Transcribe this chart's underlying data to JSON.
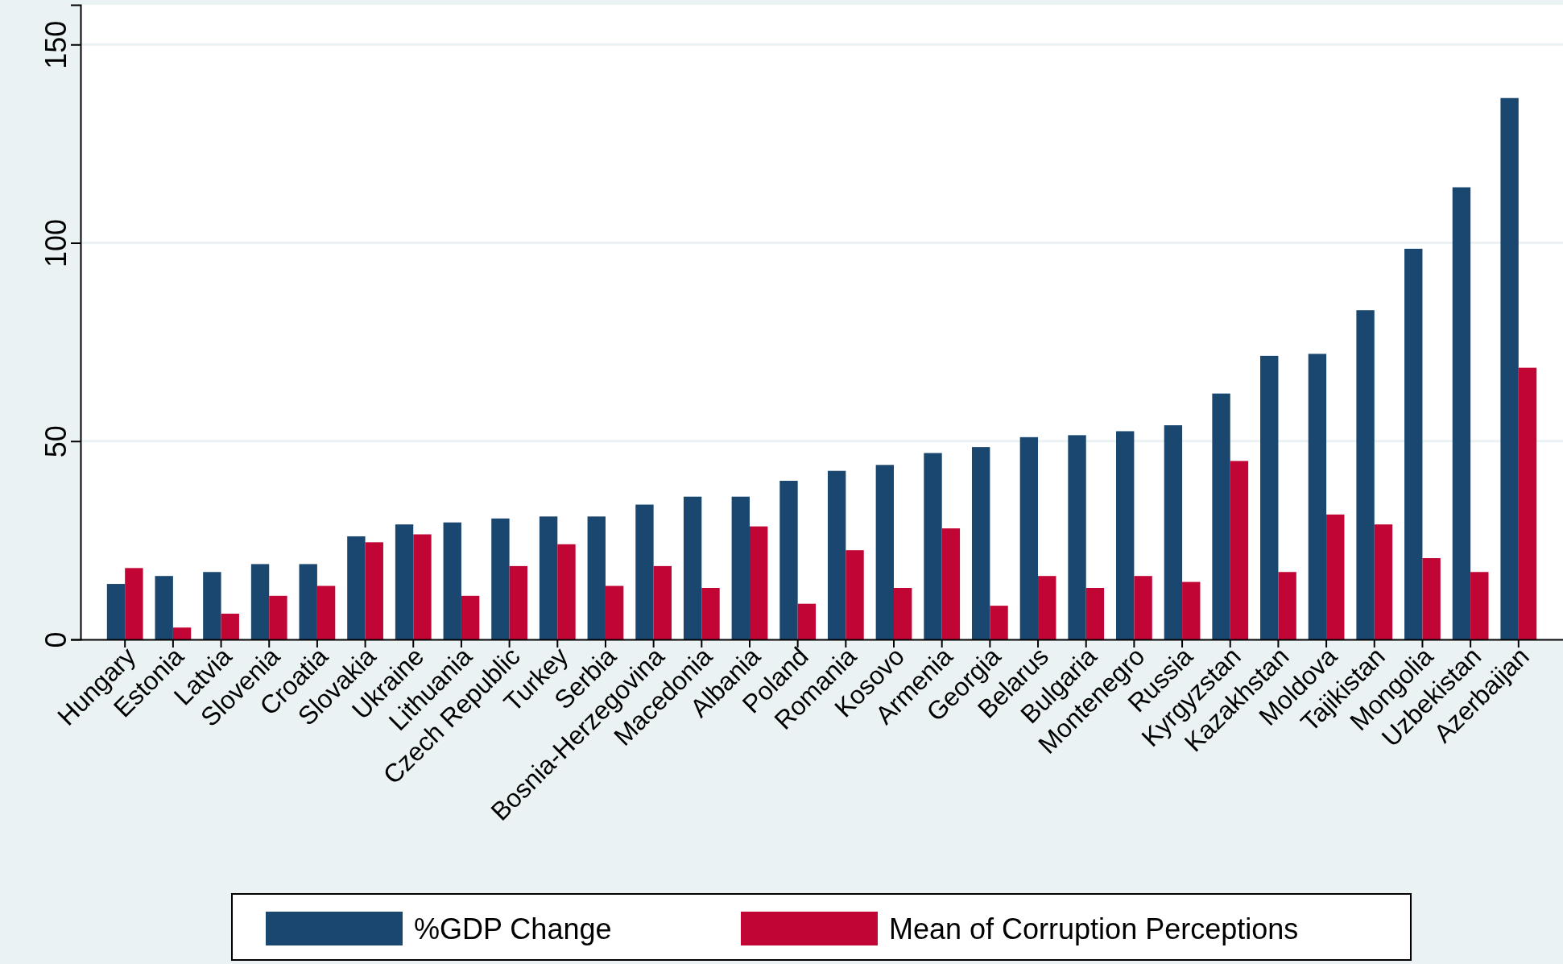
{
  "chart_data": {
    "type": "bar",
    "categories": [
      "Hungary",
      "Estonia",
      "Latvia",
      "Slovenia",
      "Croatia",
      "Slovakia",
      "Ukraine",
      "Lithuania",
      "Czech Republic",
      "Turkey",
      "Serbia",
      "Bosnia-Herzegovina",
      "Macedonia",
      "Albania",
      "Poland",
      "Romania",
      "Kosovo",
      "Armenia",
      "Georgia",
      "Belarus",
      "Bulgaria",
      "Montenegro",
      "Russia",
      "Kyrgyzstan",
      "Kazakhstan",
      "Moldova",
      "Tajikistan",
      "Mongolia",
      "Uzbekistan",
      "Azerbaijan"
    ],
    "series": [
      {
        "name": "%GDP Change",
        "color": "#1a476f",
        "values": [
          14,
          16,
          17,
          19,
          19,
          26,
          29,
          29.5,
          30.5,
          31,
          31,
          34,
          36,
          36,
          40,
          42.5,
          44,
          47,
          48.5,
          51,
          51.5,
          52.5,
          54,
          62,
          71.5,
          72,
          83,
          98.5,
          114,
          136.5
        ]
      },
      {
        "name": "Mean of Corruption Perceptions",
        "color": "#c10534",
        "values": [
          18,
          3,
          6.5,
          11,
          13.5,
          24.5,
          26.5,
          11,
          18.5,
          24,
          13.5,
          18.5,
          13,
          28.5,
          9,
          22.5,
          13,
          28,
          8.5,
          16,
          13,
          16,
          14.5,
          45,
          17,
          31.5,
          29,
          20.5,
          17,
          68.5
        ]
      }
    ],
    "ylim": [
      0,
      160
    ],
    "yticks": [
      0,
      50,
      100,
      150
    ],
    "grid": "y",
    "legend": "bottom"
  }
}
